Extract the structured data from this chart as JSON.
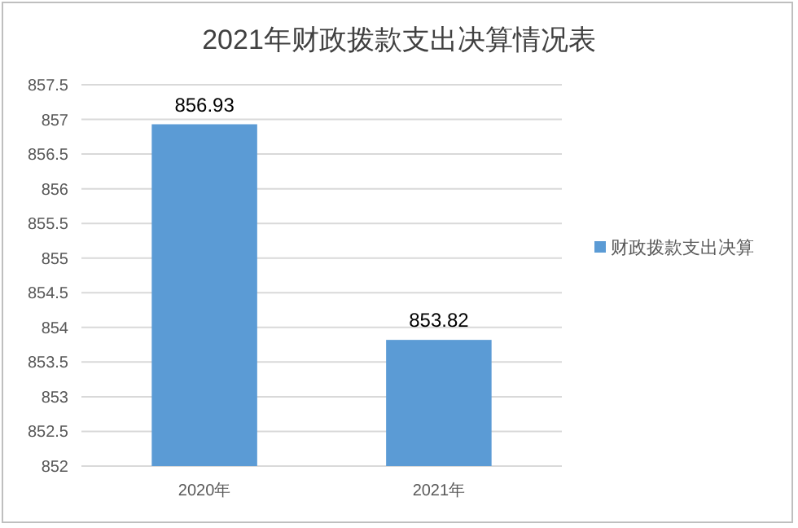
{
  "chart_data": {
    "type": "bar",
    "title": "2021年财政拨款支出决算情况表",
    "categories": [
      "2020年",
      "2021年"
    ],
    "series": [
      {
        "name": "财政拨款支出决算",
        "color": "#5b9bd5",
        "values": [
          856.93,
          853.82
        ]
      }
    ],
    "ylim": [
      852,
      857.5
    ],
    "yticks": [
      852,
      852.5,
      853,
      853.5,
      854,
      854.5,
      855,
      855.5,
      856,
      856.5,
      857,
      857.5
    ],
    "grid": "y",
    "legend": "right",
    "data_labels": true
  }
}
